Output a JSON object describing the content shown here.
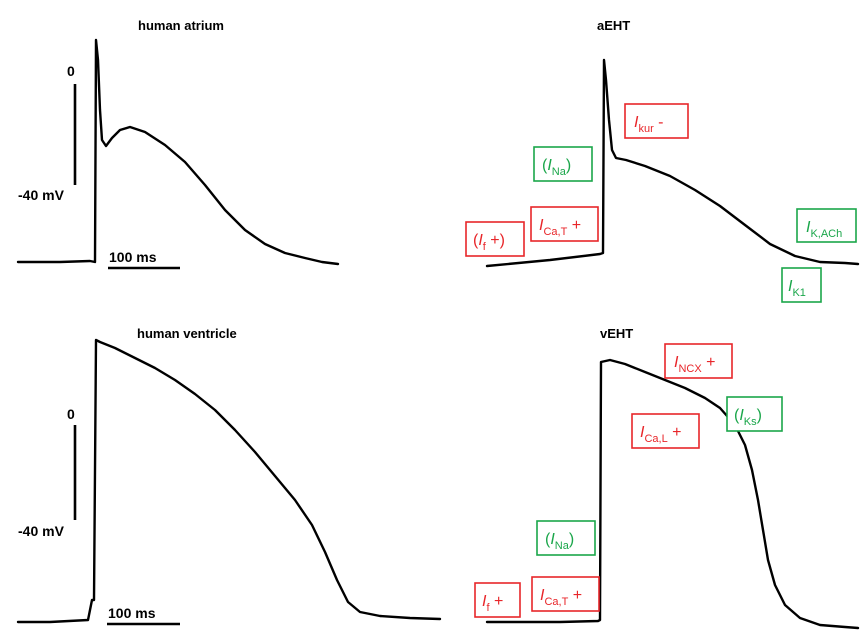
{
  "colors": {
    "trace": "#000000",
    "inward": "#e8262a",
    "outward": "#1aa64a"
  },
  "panels": {
    "atrium": {
      "title": "human atrium"
    },
    "aEHT": {
      "title": "aEHT"
    },
    "ventricle": {
      "title": "human ventricle"
    },
    "vEHT": {
      "title": "vEHT"
    }
  },
  "scale": {
    "zero_label": "0",
    "mv_label": "-40 mV",
    "time_label": "100 ms"
  },
  "currents": {
    "aEHT": [
      {
        "pre": "",
        "sym": "I",
        "sub": "kur",
        "post": " -",
        "color": "red"
      },
      {
        "pre": "(",
        "sym": "I",
        "sub": "Na",
        "post": ")",
        "color": "green"
      },
      {
        "pre": "",
        "sym": "I",
        "sub": "Ca,T",
        "post": " +",
        "color": "red"
      },
      {
        "pre": "(",
        "sym": "I",
        "sub": "f",
        "post": " +)",
        "color": "red"
      },
      {
        "pre": "",
        "sym": "I",
        "sub": "K,ACh",
        "post": "",
        "color": "green"
      },
      {
        "pre": "",
        "sym": "I",
        "sub": "K1",
        "post": "",
        "color": "green"
      }
    ],
    "vEHT": [
      {
        "pre": "",
        "sym": "I",
        "sub": "NCX",
        "post": " +",
        "color": "red"
      },
      {
        "pre": "(",
        "sym": "I",
        "sub": "Ks",
        "post": ")",
        "color": "green"
      },
      {
        "pre": "",
        "sym": "I",
        "sub": "Ca,L",
        "post": " +",
        "color": "red"
      },
      {
        "pre": "(",
        "sym": "I",
        "sub": "Na",
        "post": ")",
        "color": "green"
      },
      {
        "pre": "",
        "sym": "I",
        "sub": "Ca,T",
        "post": " +",
        "color": "red"
      },
      {
        "pre": "",
        "sym": "I",
        "sub": "f",
        "post": " +",
        "color": "red"
      }
    ]
  }
}
